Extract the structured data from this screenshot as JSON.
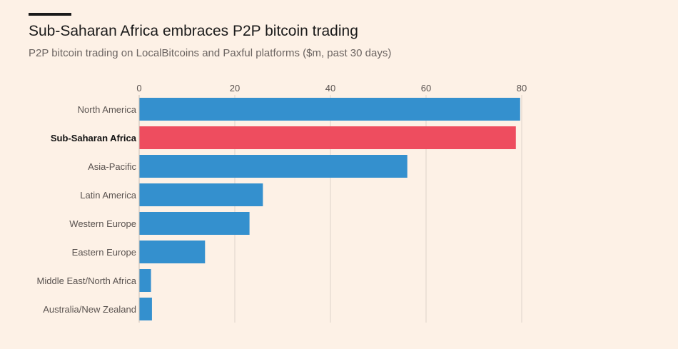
{
  "header": {
    "title": "Sub-Saharan Africa embraces P2P bitcoin trading",
    "subtitle": "P2P bitcoin trading on LocalBitcoins and Paxful platforms ($m, past 30 days)"
  },
  "colors": {
    "bar": "#3490ce",
    "highlight": "#ee4d5f",
    "grid": "#ddd3ca",
    "background": "#fdf1e6"
  },
  "chart_data": {
    "type": "bar",
    "orientation": "horizontal",
    "title": "Sub-Saharan Africa embraces P2P bitcoin trading",
    "subtitle": "P2P bitcoin trading on LocalBitcoins and Paxful platforms ($m, past 30 days)",
    "xlabel": "",
    "ylabel": "",
    "xlim": [
      0,
      80
    ],
    "xticks": [
      0,
      20,
      40,
      60,
      80
    ],
    "grid": true,
    "categories": [
      "North America",
      "Sub-Saharan Africa",
      "Asia-Pacific",
      "Latin America",
      "Western Europe",
      "Eastern Europe",
      "Middle East/North Africa",
      "Australia/New Zealand"
    ],
    "values": [
      79.6,
      78.7,
      56.0,
      25.8,
      23.0,
      13.7,
      2.4,
      2.6
    ],
    "highlight": "Sub-Saharan Africa"
  }
}
